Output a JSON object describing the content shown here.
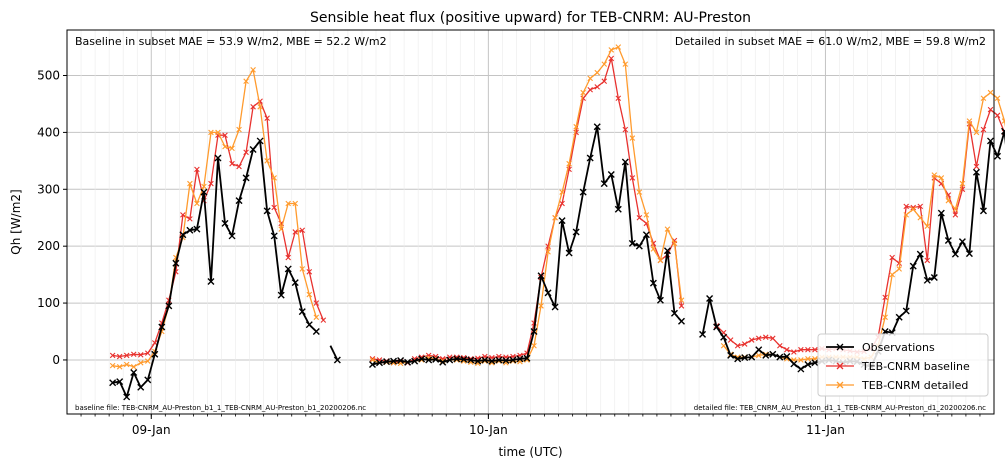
{
  "chart_data": {
    "type": "line",
    "title": "Sensible heat flux (positive upward) for TEB-CNRM: AU-Preston",
    "xlabel": "time (UTC)",
    "ylabel": "Qh [W/m2]",
    "x_start": "08-Jan 18:00",
    "x_end": "11-Jan 12:00",
    "x_step_minutes": 30,
    "ylim": [
      -95,
      580
    ],
    "yticks": [
      0,
      100,
      200,
      300,
      400,
      500
    ],
    "xticks": [
      {
        "label": "09-Jan",
        "hour": 24
      },
      {
        "label": "10-Jan",
        "hour": 48
      },
      {
        "label": "11-Jan",
        "hour": 72
      }
    ],
    "grid": true,
    "legend_position": "bottom-right",
    "annotations": {
      "baseline_metrics": "Baseline in subset MAE = 53.9 W/m2, MBE = 52.2 W/m2",
      "detailed_metrics": "Detailed in subset MAE = 61.0 W/m2, MBE = 59.8 W/m2",
      "baseline_file": "baseline file: TEB-CNRM_AU-Preston_b1_1_TEB-CNRM_AU-Preston_b1_20200206.nc",
      "detailed_file": "detailed file: TEB_CNRM_AU_Preston_d1_1_TEB-CNRM_AU-Preston_d1_20200206.nc"
    },
    "series": [
      {
        "name": "Observations",
        "color": "#000000",
        "start_hour": 21.25,
        "values": [
          -40,
          -38,
          -65,
          -22,
          -48,
          -35,
          10,
          58,
          95,
          170,
          220,
          228,
          230,
          295,
          138,
          355,
          240,
          218,
          280,
          320,
          370,
          385,
          262,
          218,
          114,
          160,
          136,
          85,
          62,
          50,
          null,
          25,
          0,
          null,
          null,
          null,
          null,
          -8,
          -5,
          -3,
          -2,
          -1,
          -4,
          -2,
          2,
          0,
          1,
          -4,
          0,
          2,
          1,
          0,
          -2,
          0,
          -2,
          0,
          -1,
          0,
          2,
          3,
          50,
          148,
          118,
          93,
          245,
          188,
          225,
          295,
          355,
          410,
          310,
          326,
          265,
          348,
          205,
          200,
          220,
          135,
          105,
          192,
          82,
          68,
          null,
          null,
          45,
          108,
          58,
          40,
          8,
          2,
          4,
          5,
          18,
          8,
          10,
          5,
          6,
          -7,
          -16,
          -8,
          -5,
          -2,
          0,
          -2,
          -5,
          -2,
          -3,
          -8,
          -12,
          15,
          50,
          48,
          75,
          86,
          165,
          186,
          140,
          145,
          258,
          210,
          186,
          208,
          187,
          330,
          262,
          385,
          358,
          402,
          280,
          210,
          300,
          140,
          128,
          145,
          88
        ],
        "skip_markers": [
          30,
          31
        ]
      },
      {
        "name": "TEB-CNRM baseline",
        "color": "#e8322f",
        "start_hour": 21.25,
        "values": [
          8,
          6,
          8,
          10,
          9,
          12,
          30,
          65,
          105,
          155,
          255,
          248,
          335,
          280,
          310,
          395,
          395,
          345,
          340,
          365,
          445,
          455,
          425,
          268,
          240,
          180,
          225,
          228,
          155,
          100,
          70,
          null,
          null,
          null,
          null,
          null,
          null,
          2,
          0,
          -2,
          -5,
          -2,
          -5,
          2,
          5,
          8,
          6,
          2,
          5,
          5,
          4,
          2,
          3,
          6,
          4,
          6,
          5,
          6,
          8,
          12,
          65,
          145,
          200,
          250,
          275,
          335,
          400,
          460,
          475,
          480,
          490,
          530,
          460,
          405,
          320,
          250,
          240,
          205,
          175,
          185,
          210,
          95,
          null,
          null,
          null,
          null,
          60,
          48,
          35,
          25,
          28,
          35,
          38,
          40,
          38,
          25,
          18,
          14,
          18,
          18,
          18,
          20,
          18,
          20,
          18,
          16,
          14,
          15,
          20,
          40,
          110,
          180,
          170,
          270,
          268,
          270,
          175,
          320,
          310,
          290,
          255,
          300,
          415,
          340,
          405,
          440,
          430,
          400,
          340,
          290,
          255,
          200,
          135,
          77
        ]
      },
      {
        "name": "TEB-CNRM detailed",
        "color": "#ff9b2e",
        "start_hour": 21.25,
        "values": [
          -10,
          -12,
          -8,
          -12,
          -5,
          -2,
          15,
          50,
          95,
          180,
          215,
          310,
          275,
          305,
          400,
          400,
          375,
          372,
          405,
          490,
          510,
          445,
          350,
          320,
          230,
          275,
          275,
          160,
          115,
          75,
          null,
          null,
          null,
          null,
          null,
          null,
          null,
          0,
          -5,
          -4,
          -5,
          -6,
          -4,
          -2,
          0,
          3,
          2,
          -2,
          0,
          0,
          -2,
          -4,
          -6,
          -2,
          -5,
          -2,
          -5,
          -2,
          -3,
          0,
          25,
          95,
          190,
          250,
          295,
          345,
          410,
          470,
          495,
          505,
          520,
          545,
          550,
          520,
          390,
          295,
          255,
          195,
          175,
          230,
          205,
          105,
          null,
          null,
          null,
          null,
          null,
          25,
          10,
          5,
          5,
          5,
          8,
          10,
          10,
          5,
          2,
          0,
          0,
          2,
          2,
          5,
          5,
          5,
          5,
          5,
          5,
          2,
          5,
          25,
          75,
          150,
          160,
          255,
          265,
          250,
          235,
          325,
          320,
          280,
          265,
          310,
          420,
          400,
          460,
          470,
          460,
          420,
          350,
          310,
          260,
          215,
          160,
          80
        ]
      }
    ]
  }
}
